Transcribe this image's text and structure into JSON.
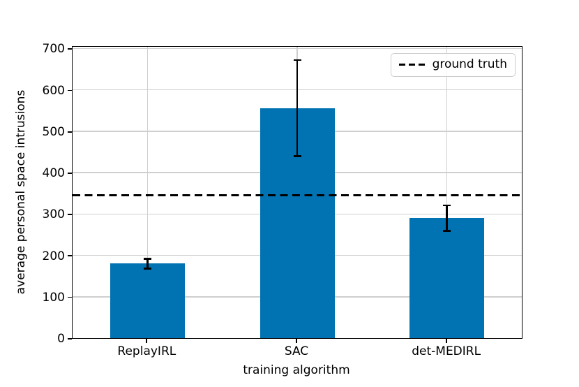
{
  "chart_data": {
    "type": "bar",
    "categories": [
      "ReplayIRL",
      "SAC",
      "det-MEDIRL"
    ],
    "values": [
      180,
      556,
      290
    ],
    "error_bars": [
      12,
      116,
      31
    ],
    "xlabel": "training algorithm",
    "ylabel": "average personal space intrusions",
    "ylim": [
      0,
      700
    ],
    "yticks": [
      0,
      100,
      200,
      300,
      400,
      500,
      600,
      700
    ],
    "reference_line": {
      "label": "ground truth",
      "value": 345,
      "style": "dashed",
      "color": "#000000"
    },
    "legend": {
      "position": "upper right",
      "entries": [
        "ground truth"
      ]
    },
    "grid": true,
    "colors": {
      "bar": "#0173b2",
      "grid": "#cfcfcf",
      "spine": "#000000",
      "background": "#ffffff"
    }
  }
}
